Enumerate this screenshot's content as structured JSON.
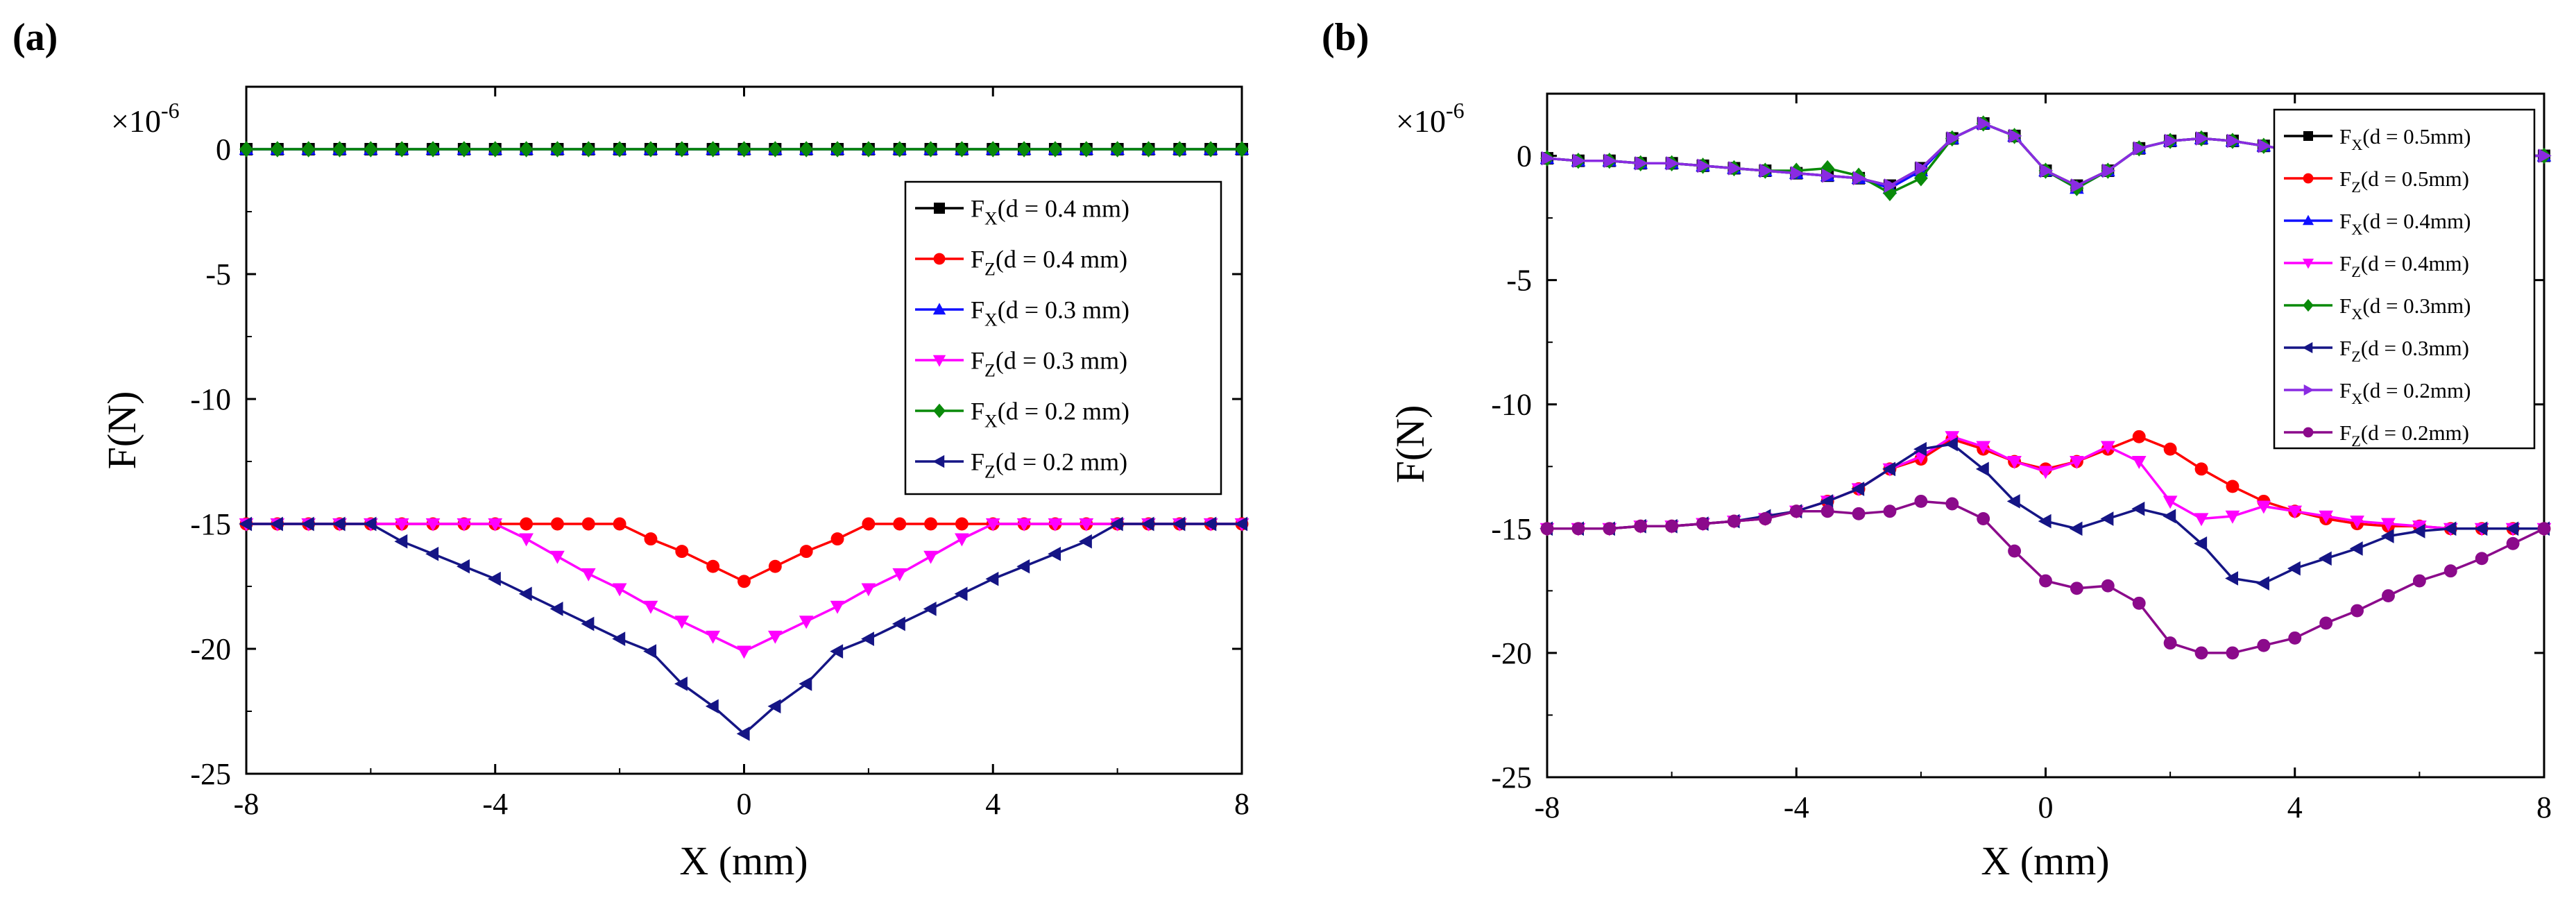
{
  "colors": {
    "black": "#000000",
    "red": "#ff0000",
    "blue": "#1010ff",
    "magenta": "#ff00ff",
    "green": "#0a8a0a",
    "navy": "#151585",
    "violet": "#8a2be2",
    "purple": "#8b0a8b"
  },
  "chart_data": [
    {
      "panel": "(a)",
      "type": "line",
      "xlabel": "X (mm)",
      "ylabel": "F(N)",
      "multiplier": "×10-6",
      "xlim": [
        -8,
        8
      ],
      "ylim": [
        -25,
        2.5
      ],
      "xticks": [
        -8,
        -4,
        0,
        4,
        8
      ],
      "yticks": [
        0,
        -5,
        -10,
        -15,
        -20,
        -25
      ],
      "x": [
        -8,
        -7.5,
        -7,
        -6.5,
        -6,
        -5.5,
        -5,
        -4.5,
        -4,
        -3.5,
        -3,
        -2.5,
        -2,
        -1.5,
        -1,
        -0.5,
        0,
        0.5,
        1,
        1.5,
        2,
        2.5,
        3,
        3.5,
        4,
        4.5,
        5,
        5.5,
        6,
        6.5,
        7,
        7.5,
        8
      ],
      "legend_position": "right",
      "series": [
        {
          "name": "FX(d = 0.4 mm)",
          "sym": "F",
          "sub": "X",
          "rest": "(d = 0.4 mm)",
          "color": "#000000",
          "marker": "square",
          "values": [
            0,
            0,
            0,
            0,
            0,
            0,
            0,
            0,
            0,
            0,
            0,
            0,
            0,
            0,
            0,
            0,
            0,
            0,
            0,
            0,
            0,
            0,
            0,
            0,
            0,
            0,
            0,
            0,
            0,
            0,
            0,
            0,
            0
          ]
        },
        {
          "name": "FZ(d = 0.4 mm)",
          "sym": "F",
          "sub": "Z",
          "rest": "(d = 0.4 mm)",
          "color": "#ff0000",
          "marker": "circle",
          "values": [
            -15,
            -15,
            -15,
            -15,
            -15,
            -15,
            -15,
            -15,
            -15,
            -15,
            -15,
            -15,
            -15,
            -15.6,
            -16.1,
            -16.7,
            -17.3,
            -16.7,
            -16.1,
            -15.6,
            -15,
            -15,
            -15,
            -15,
            -15,
            -15,
            -15,
            -15,
            -15,
            -15,
            -15,
            -15,
            -15
          ]
        },
        {
          "name": "FX(d = 0.3 mm)",
          "sym": "F",
          "sub": "X",
          "rest": "(d = 0.3 mm)",
          "color": "#1010ff",
          "marker": "triangle-up",
          "values": [
            0,
            0,
            0,
            0,
            0,
            0,
            0,
            0,
            0,
            0,
            0,
            0,
            0,
            0,
            0,
            0,
            0,
            0,
            0,
            0,
            0,
            0,
            0,
            0,
            0,
            0,
            0,
            0,
            0,
            0,
            0,
            0,
            0
          ]
        },
        {
          "name": "FZ(d = 0.3 mm)",
          "sym": "F",
          "sub": "Z",
          "rest": "(d = 0.3 mm)",
          "color": "#ff00ff",
          "marker": "triangle-down",
          "values": [
            -15,
            -15,
            -15,
            -15,
            -15,
            -15,
            -15,
            -15,
            -15,
            -15.6,
            -16.3,
            -17,
            -17.6,
            -18.3,
            -18.9,
            -19.5,
            -20.1,
            -19.5,
            -18.9,
            -18.3,
            -17.6,
            -17,
            -16.3,
            -15.6,
            -15,
            -15,
            -15,
            -15,
            -15,
            -15,
            -15,
            -15,
            -15
          ]
        },
        {
          "name": "FX(d = 0.2 mm)",
          "sym": "F",
          "sub": "X",
          "rest": "(d = 0.2 mm)",
          "color": "#0a8a0a",
          "marker": "diamond",
          "values": [
            0,
            0,
            0,
            0,
            0,
            0,
            0,
            0,
            0,
            0,
            0,
            0,
            0,
            0,
            0,
            0,
            0,
            0,
            0,
            0,
            0,
            0,
            0,
            0,
            0,
            0,
            0,
            0,
            0,
            0,
            0,
            0,
            0
          ]
        },
        {
          "name": "FZ(d = 0.2 mm)",
          "sym": "F",
          "sub": "Z",
          "rest": "(d = 0.2 mm)",
          "color": "#151585",
          "marker": "triangle-left",
          "values": [
            -15,
            -15,
            -15,
            -15,
            -15,
            -15.7,
            -16.2,
            -16.7,
            -17.2,
            -17.8,
            -18.4,
            -19,
            -19.6,
            -20.1,
            -21.4,
            -22.3,
            -23.4,
            -22.3,
            -21.4,
            -20.1,
            -19.6,
            -19,
            -18.4,
            -17.8,
            -17.2,
            -16.7,
            -16.2,
            -15.7,
            -15,
            -15,
            -15,
            -15,
            -15
          ]
        }
      ]
    },
    {
      "panel": "(b)",
      "type": "line",
      "xlabel": "X (mm)",
      "ylabel": "F(N)",
      "multiplier": "×10-6",
      "xlim": [
        -8,
        8
      ],
      "ylim": [
        -25,
        2.5
      ],
      "xticks": [
        -8,
        -4,
        0,
        4,
        8
      ],
      "yticks": [
        0,
        -5,
        -10,
        -15,
        -20,
        -25
      ],
      "x": [
        -8,
        -7.5,
        -7,
        -6.5,
        -6,
        -5.5,
        -5,
        -4.5,
        -4,
        -3.5,
        -3,
        -2.5,
        -2,
        -1.5,
        -1,
        -0.5,
        0,
        0.5,
        1,
        1.5,
        2,
        2.5,
        3,
        3.5,
        4,
        4.5,
        5,
        5.5,
        6,
        6.5,
        7,
        7.5,
        8
      ],
      "legend_position": "top-right",
      "series": [
        {
          "name": "FX(d = 0.5mm)",
          "sym": "F",
          "sub": "X",
          "rest": "(d = 0.5mm)",
          "color": "#000000",
          "marker": "square",
          "values": [
            -0.1,
            -0.2,
            -0.2,
            -0.3,
            -0.3,
            -0.4,
            -0.5,
            -0.6,
            -0.7,
            -0.8,
            -0.9,
            -1.2,
            -0.5,
            0.7,
            1.3,
            0.8,
            -0.6,
            -1.2,
            -0.6,
            0.3,
            0.6,
            0.7,
            0.6,
            0.4,
            0.2,
            0.1,
            0,
            0,
            0,
            0,
            0,
            0,
            0
          ]
        },
        {
          "name": "FZ(d = 0.5mm)",
          "sym": "F",
          "sub": "Z",
          "rest": "(d = 0.5mm)",
          "color": "#ff0000",
          "marker": "circle",
          "values": [
            -15,
            -15,
            -15,
            -14.9,
            -14.9,
            -14.8,
            -14.7,
            -14.6,
            -14.3,
            -13.9,
            -13.4,
            -12.6,
            -12.2,
            -11.4,
            -11.8,
            -12.3,
            -12.6,
            -12.3,
            -11.8,
            -11.3,
            -11.8,
            -12.6,
            -13.3,
            -13.9,
            -14.3,
            -14.6,
            -14.8,
            -14.9,
            -14.9,
            -15,
            -15,
            -15,
            -15
          ]
        },
        {
          "name": "FX(d = 0.4mm)",
          "sym": "F",
          "sub": "X",
          "rest": "(d = 0.4mm)",
          "color": "#1010ff",
          "marker": "triangle-up",
          "values": [
            -0.1,
            -0.2,
            -0.2,
            -0.3,
            -0.3,
            -0.4,
            -0.5,
            -0.6,
            -0.7,
            -0.8,
            -0.9,
            -1.3,
            -0.6,
            0.7,
            1.3,
            0.8,
            -0.6,
            -1.3,
            -0.6,
            0.3,
            0.6,
            0.7,
            0.6,
            0.4,
            0.2,
            0.1,
            0,
            0,
            0,
            0,
            0,
            0,
            0
          ]
        },
        {
          "name": "FZ(d = 0.4mm)",
          "sym": "F",
          "sub": "Z",
          "rest": "(d = 0.4mm)",
          "color": "#ff00ff",
          "marker": "triangle-down",
          "values": [
            -15,
            -15,
            -15,
            -14.9,
            -14.9,
            -14.8,
            -14.7,
            -14.6,
            -14.3,
            -13.9,
            -13.4,
            -12.6,
            -12.1,
            -11.3,
            -11.7,
            -12.3,
            -12.7,
            -12.3,
            -11.7,
            -12.3,
            -13.9,
            -14.6,
            -14.5,
            -14.1,
            -14.3,
            -14.5,
            -14.7,
            -14.8,
            -14.9,
            -15,
            -15,
            -15,
            -15
          ]
        },
        {
          "name": "FX(d = 0.3mm)",
          "sym": "F",
          "sub": "X",
          "rest": "(d = 0.3mm)",
          "color": "#0a8a0a",
          "marker": "diamond",
          "values": [
            -0.1,
            -0.2,
            -0.2,
            -0.3,
            -0.3,
            -0.4,
            -0.5,
            -0.6,
            -0.6,
            -0.5,
            -0.8,
            -1.5,
            -0.9,
            0.7,
            1.3,
            0.8,
            -0.6,
            -1.3,
            -0.6,
            0.3,
            0.6,
            0.7,
            0.6,
            0.4,
            0.2,
            0.1,
            0,
            0,
            0,
            0,
            0,
            0,
            0
          ]
        },
        {
          "name": "FZ(d = 0.3mm)",
          "sym": "F",
          "sub": "Z",
          "rest": "(d = 0.3mm)",
          "color": "#151585",
          "marker": "triangle-left",
          "values": [
            -15,
            -15,
            -15,
            -14.9,
            -14.9,
            -14.8,
            -14.7,
            -14.5,
            -14.3,
            -13.9,
            -13.4,
            -12.6,
            -11.8,
            -11.6,
            -12.6,
            -13.9,
            -14.7,
            -15,
            -14.6,
            -14.2,
            -14.5,
            -15.6,
            -17,
            -17.2,
            -16.6,
            -16.2,
            -15.8,
            -15.3,
            -15.1,
            -15,
            -15,
            -15,
            -15
          ]
        },
        {
          "name": "FX(d = 0.2mm)",
          "sym": "F",
          "sub": "X",
          "rest": "(d = 0.2mm)",
          "color": "#8a2be2",
          "marker": "triangle-right",
          "values": [
            -0.1,
            -0.2,
            -0.2,
            -0.3,
            -0.3,
            -0.4,
            -0.5,
            -0.6,
            -0.7,
            -0.8,
            -0.9,
            -1.2,
            -0.5,
            0.7,
            1.3,
            0.8,
            -0.6,
            -1.2,
            -0.6,
            0.3,
            0.6,
            0.7,
            0.6,
            0.4,
            0.2,
            0.1,
            0,
            0,
            0,
            0,
            0,
            0,
            0
          ]
        },
        {
          "name": "FZ(d = 0.2mm)",
          "sym": "F",
          "sub": "Z",
          "rest": "(d = 0.2mm)",
          "color": "#8b0a8b",
          "marker": "circle",
          "values": [
            -15,
            -15,
            -15,
            -14.9,
            -14.9,
            -14.8,
            -14.7,
            -14.6,
            -14.3,
            -14.3,
            -14.4,
            -14.3,
            -13.9,
            -14,
            -14.6,
            -15.9,
            -17.1,
            -17.4,
            -17.3,
            -18,
            -19.6,
            -20,
            -20,
            -19.7,
            -19.4,
            -18.8,
            -18.3,
            -17.7,
            -17.1,
            -16.7,
            -16.2,
            -15.6,
            -15
          ]
        }
      ]
    }
  ]
}
